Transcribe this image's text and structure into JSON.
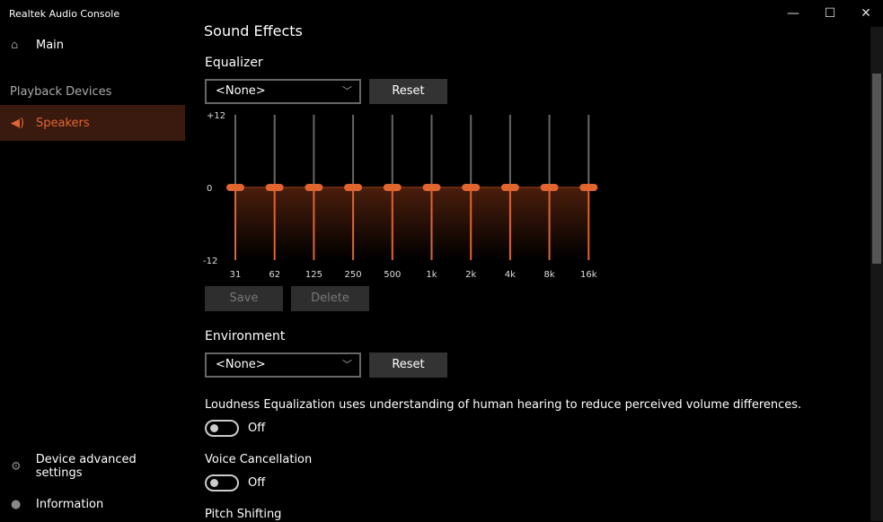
{
  "window": {
    "title": "Realtek Audio Console",
    "minimize": "—",
    "maximize": "☐",
    "close": "✕"
  },
  "sidebar": {
    "main": "Main",
    "section": "Playback Devices",
    "speakers": "Speakers",
    "advanced": "Device advanced settings",
    "information": "Information"
  },
  "content": {
    "title": "Sound Effects",
    "equalizer": {
      "label": "Equalizer",
      "preset": "<None>",
      "reset": "Reset",
      "save": "Save",
      "delete": "Delete"
    },
    "environment": {
      "label": "Environment",
      "preset": "<None>",
      "reset": "Reset"
    },
    "loudness": {
      "label": "Loudness Equalization uses understanding of human hearing to reduce perceived volume differences.",
      "state": "Off"
    },
    "voice": {
      "label": "Voice Cancellation",
      "state": "Off"
    },
    "pitch": {
      "label": "Pitch Shifting"
    }
  },
  "chart_data": {
    "type": "line",
    "ylim": [
      -12,
      12
    ],
    "yticks": [
      "+12",
      "0",
      "-12"
    ],
    "categories": [
      "31",
      "62",
      "125",
      "250",
      "500",
      "1k",
      "2k",
      "4k",
      "8k",
      "16k"
    ],
    "values": [
      0,
      0,
      0,
      0,
      0,
      0,
      0,
      0,
      0,
      0
    ]
  },
  "colors": {
    "accent": "#e0652f"
  }
}
